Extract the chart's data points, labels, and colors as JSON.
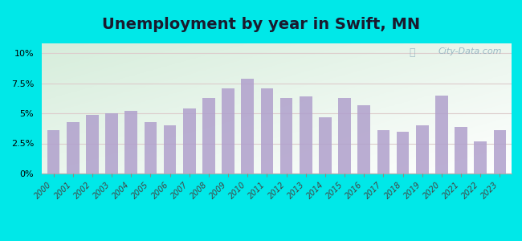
{
  "title": "Unemployment by year in Swift, MN",
  "years": [
    2000,
    2001,
    2002,
    2003,
    2004,
    2005,
    2006,
    2007,
    2008,
    2009,
    2010,
    2011,
    2012,
    2013,
    2014,
    2015,
    2016,
    2017,
    2018,
    2019,
    2020,
    2021,
    2022,
    2023
  ],
  "values": [
    3.6,
    4.3,
    4.9,
    5.0,
    5.2,
    4.3,
    4.0,
    5.4,
    6.3,
    7.1,
    7.9,
    7.1,
    6.3,
    6.4,
    4.7,
    6.3,
    5.7,
    3.6,
    3.5,
    4.0,
    6.5,
    3.9,
    2.7,
    3.6
  ],
  "bar_color": "#b0a0cc",
  "background_outer": "#00e8e8",
  "yticks": [
    0,
    2.5,
    5.0,
    7.5,
    10.0
  ],
  "ylim": [
    0,
    10.8
  ],
  "title_fontsize": 14,
  "watermark_text": "City-Data.com"
}
